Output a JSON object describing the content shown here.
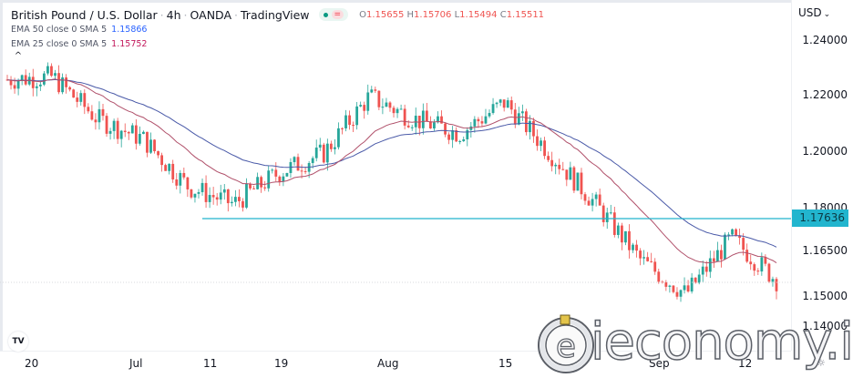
{
  "header": {
    "symbol": "British Pound / U.S. Dollar",
    "interval": "4h",
    "exchange": "OANDA",
    "source": "TradingView",
    "ohlc": {
      "open_label": "O",
      "open": "1.15655",
      "high_label": "H",
      "high": "1.15706",
      "low_label": "L",
      "low": "1.15494",
      "close_label": "C",
      "close": "1.15511"
    },
    "indicators": [
      {
        "label": "EMA 50 close 0 SMA 5",
        "value": "1.15866",
        "color": "#2962ff"
      },
      {
        "label": "EMA 25 close 0 SMA 5",
        "value": "1.15752",
        "color": "#c2185b"
      }
    ],
    "collapse_glyph": "^"
  },
  "price_axis": {
    "currency": "USD",
    "currency_glyph": "⌄",
    "ticks": [
      "1.24000",
      "1.22000",
      "1.20000",
      "1.18000",
      "1.16500",
      "1.15000",
      "1.14000"
    ],
    "highlight_label": "1.17636",
    "highlight_color": "#22b5ce"
  },
  "time_axis": {
    "ticks": [
      "20",
      "Jul",
      "11",
      "19",
      "Aug",
      "15",
      "Sep",
      "12"
    ]
  },
  "branding": {
    "tv_logo": "TV",
    "watermark": "ieconomy.io",
    "settings_glyph": "☼"
  },
  "colors": {
    "up": "#26a69a",
    "down": "#ef5350",
    "ema50": "#2962ff",
    "ema25": "#c2185b",
    "horizontal_line": "#22b5ce"
  },
  "chart_data": {
    "type": "candlestick",
    "title": "British Pound / U.S. Dollar · 4h · OANDA",
    "xlabel": "",
    "ylabel": "USD",
    "ylim": [
      1.137,
      1.245
    ],
    "x_ticks": [
      "20",
      "Jul",
      "11",
      "19",
      "Aug",
      "15",
      "Sep",
      "12"
    ],
    "y_ticks": [
      1.24,
      1.22,
      1.2,
      1.18,
      1.165,
      1.15,
      1.14
    ],
    "grid": false,
    "horizontal_line": {
      "value": 1.17636,
      "start_tick": "11"
    },
    "last_price_line": 1.15511,
    "close_path": {
      "x": [
        "20",
        "",
        "Jul",
        "",
        "11",
        "",
        "19",
        "",
        "Aug",
        "",
        "",
        "15",
        "",
        "",
        "Sep",
        "",
        "12",
        ""
      ],
      "values": [
        1.226,
        1.227,
        1.212,
        1.205,
        1.188,
        1.182,
        1.193,
        1.2,
        1.22,
        1.212,
        1.207,
        1.218,
        1.2,
        1.182,
        1.162,
        1.15,
        1.17,
        1.155
      ]
    },
    "series": [
      {
        "name": "EMA 50",
        "last": 1.15866
      },
      {
        "name": "EMA 25",
        "last": 1.15752
      }
    ]
  }
}
